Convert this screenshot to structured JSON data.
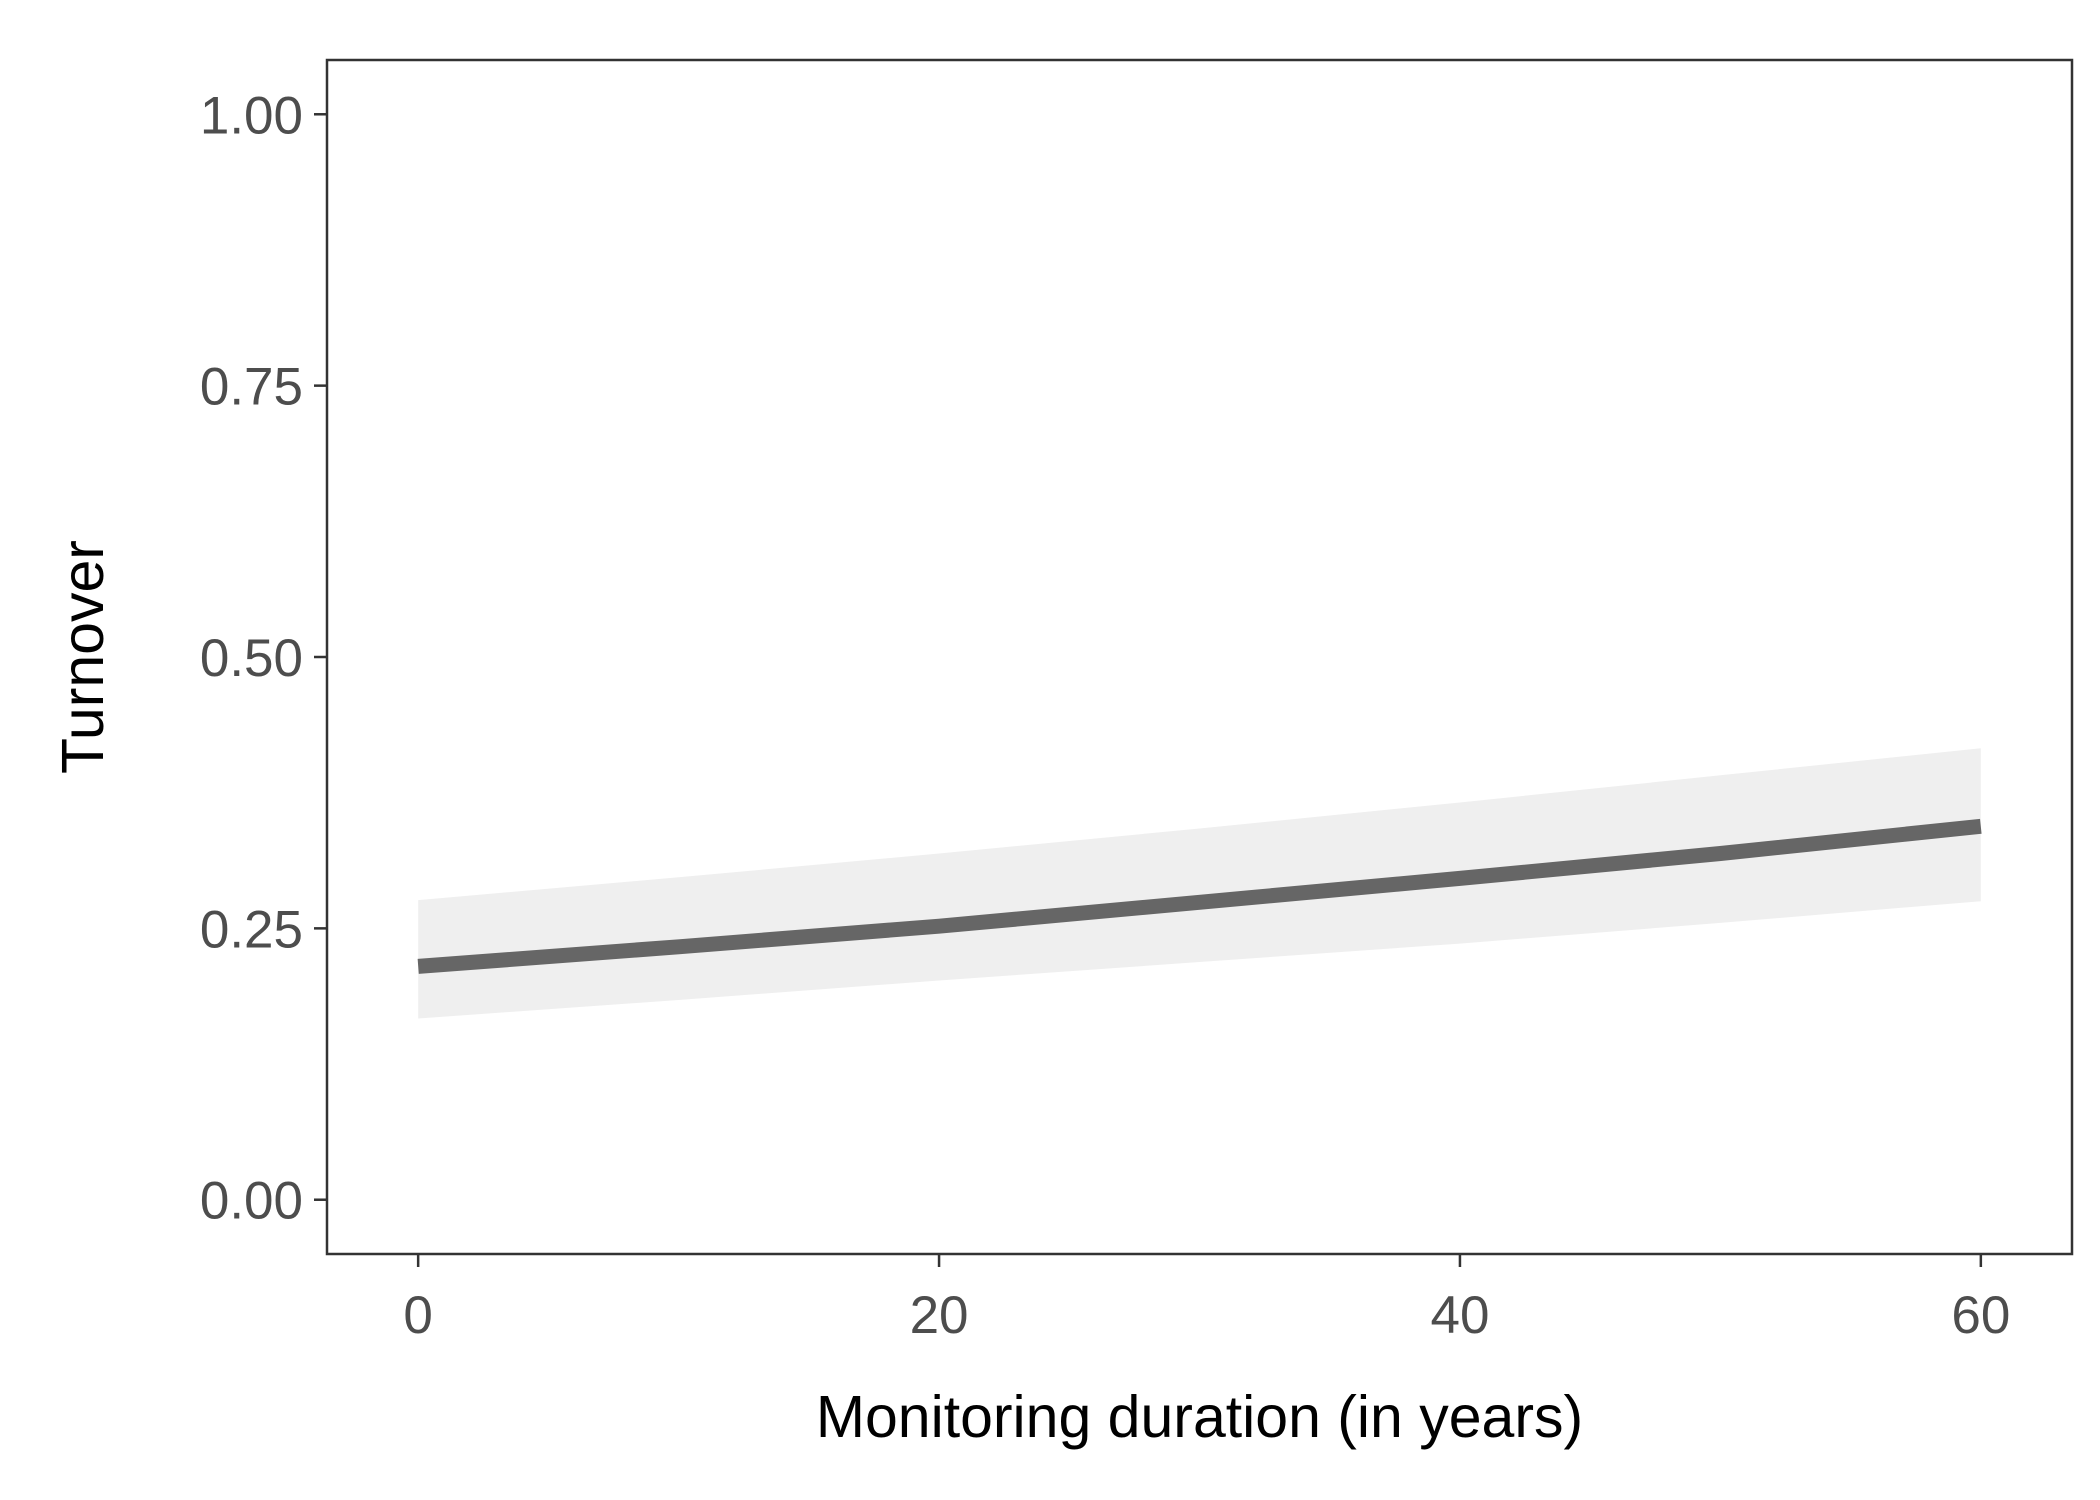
{
  "chart_data": {
    "type": "line",
    "title": "",
    "xlabel": "Monitoring duration (in years)",
    "ylabel": "Turnover",
    "xlim": [
      -3.5,
      63.5
    ],
    "ylim": [
      -0.05,
      1.05
    ],
    "x_ticks": [
      0,
      20,
      40,
      60
    ],
    "x_tick_labels": [
      "0",
      "20",
      "40",
      "60"
    ],
    "y_ticks": [
      0,
      0.25,
      0.5,
      0.75,
      1
    ],
    "y_tick_labels": [
      "0.00",
      "0.25",
      "0.50",
      "0.75",
      "1.00"
    ],
    "grid": false,
    "legend": "none",
    "series": [
      {
        "x": [
          0,
          10,
          20,
          30,
          40,
          50,
          60
        ],
        "y": [
          0.215,
          0.233,
          0.252,
          0.274,
          0.296,
          0.319,
          0.344
        ],
        "ci_lower": [
          0.167,
          0.184,
          0.202,
          0.219,
          0.236,
          0.255,
          0.275
        ],
        "ci_upper": [
          0.276,
          0.297,
          0.319,
          0.342,
          0.366,
          0.391,
          0.416
        ]
      }
    ],
    "colors": {
      "line": "#666666",
      "ribbon": "#efefef",
      "panel_border": "#333333",
      "tick_text": "#4d4d4d",
      "axis_title": "#000000"
    }
  }
}
